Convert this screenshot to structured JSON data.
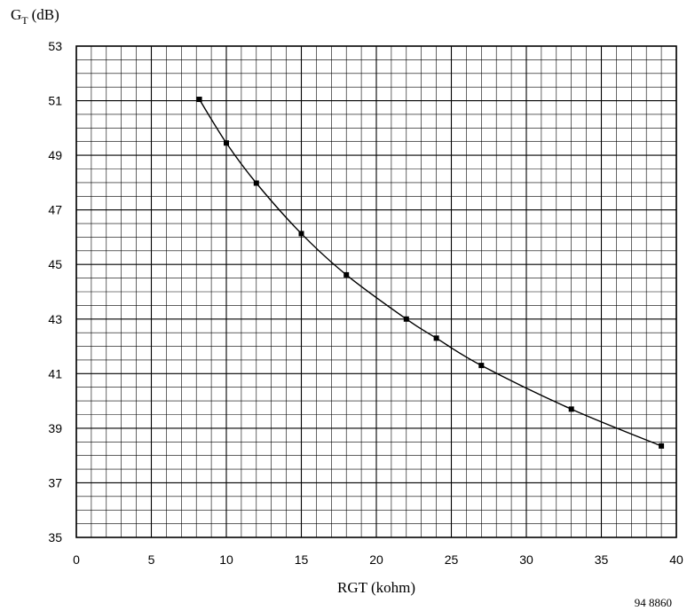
{
  "chart_data": {
    "type": "line",
    "title": "",
    "ylabel_main": "G",
    "ylabel_sub": "T",
    "ylabel_unit": "(dB)",
    "xlabel": "RGT (kohm)",
    "figure_id": "94 8860",
    "xlim": [
      0,
      40
    ],
    "ylim": [
      35,
      53
    ],
    "x_ticks": [
      "0",
      "5",
      "10",
      "15",
      "20",
      "25",
      "30",
      "35",
      "40"
    ],
    "y_ticks": [
      "35",
      "37",
      "39",
      "41",
      "43",
      "45",
      "47",
      "49",
      "51",
      "53"
    ],
    "grid": true,
    "legend": "none",
    "series": [
      {
        "x": [
          8.2,
          10,
          12,
          15,
          18,
          22,
          24,
          27,
          33,
          39
        ],
        "y": [
          51.05,
          49.45,
          47.98,
          46.13,
          44.62,
          43.0,
          42.3,
          41.3,
          39.7,
          38.35
        ]
      }
    ],
    "colors": {
      "line": "#000000",
      "grid": "#000000",
      "marker": "#000000"
    }
  }
}
